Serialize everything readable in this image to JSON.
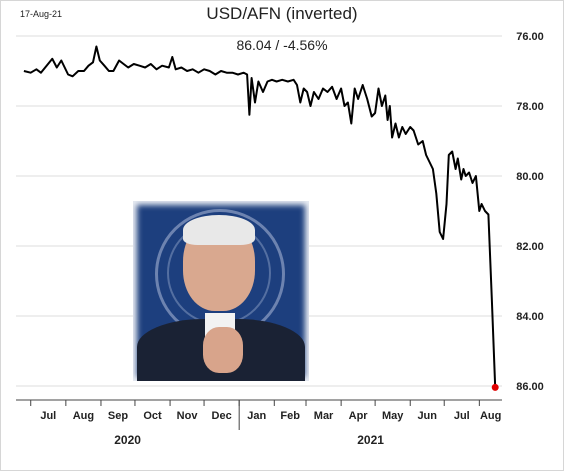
{
  "header": {
    "date_stamp": "17-Aug-21",
    "title": "USD/AFN (inverted)",
    "subtitle": "86.04  /  -4.56%"
  },
  "chart_data": {
    "type": "line",
    "title": "USD/AFN (inverted)",
    "subtitle": "86.04  /  -4.56%",
    "y_axis": {
      "inverted": true,
      "position": "right",
      "ylim": [
        76,
        86.3
      ],
      "ticks": [
        76,
        78,
        80,
        82,
        84,
        86
      ],
      "tick_labels": [
        "76.00",
        "78.00",
        "80.00",
        "82.00",
        "84.00",
        "86.00"
      ],
      "grid": true
    },
    "x_axis": {
      "month_labels": [
        "Jul",
        "Aug",
        "Sep",
        "Oct",
        "Nov",
        "Dec",
        "Jan",
        "Feb",
        "Mar",
        "Apr",
        "May",
        "Jun",
        "Jul",
        "Aug"
      ],
      "year_labels": [
        "2020",
        "2021"
      ]
    },
    "series": [
      {
        "color": "#000000",
        "points": [
          [
            "2020-06-25",
            77.0
          ],
          [
            "2020-07-01",
            77.05
          ],
          [
            "2020-07-06",
            76.95
          ],
          [
            "2020-07-10",
            77.05
          ],
          [
            "2020-07-15",
            76.85
          ],
          [
            "2020-07-20",
            76.65
          ],
          [
            "2020-07-24",
            76.9
          ],
          [
            "2020-07-28",
            76.7
          ],
          [
            "2020-08-03",
            77.1
          ],
          [
            "2020-08-07",
            77.15
          ],
          [
            "2020-08-12",
            77.0
          ],
          [
            "2020-08-17",
            77.0
          ],
          [
            "2020-08-21",
            76.85
          ],
          [
            "2020-08-25",
            76.75
          ],
          [
            "2020-08-28",
            76.3
          ],
          [
            "2020-08-31",
            76.7
          ],
          [
            "2020-09-04",
            76.85
          ],
          [
            "2020-09-08",
            77.0
          ],
          [
            "2020-09-12",
            77.0
          ],
          [
            "2020-09-17",
            76.7
          ],
          [
            "2020-09-21",
            76.8
          ],
          [
            "2020-09-25",
            76.9
          ],
          [
            "2020-09-30",
            76.8
          ],
          [
            "2020-10-05",
            76.85
          ],
          [
            "2020-10-10",
            76.9
          ],
          [
            "2020-10-15",
            76.8
          ],
          [
            "2020-10-20",
            76.95
          ],
          [
            "2020-10-25",
            76.85
          ],
          [
            "2020-10-31",
            76.9
          ],
          [
            "2020-11-03",
            76.6
          ],
          [
            "2020-11-06",
            76.95
          ],
          [
            "2020-11-11",
            76.9
          ],
          [
            "2020-11-16",
            77.0
          ],
          [
            "2020-11-21",
            76.95
          ],
          [
            "2020-11-26",
            77.05
          ],
          [
            "2020-12-01",
            76.95
          ],
          [
            "2020-12-06",
            77.0
          ],
          [
            "2020-12-11",
            77.1
          ],
          [
            "2020-12-16",
            77.0
          ],
          [
            "2020-12-21",
            77.05
          ],
          [
            "2020-12-26",
            77.05
          ],
          [
            "2020-12-31",
            77.1
          ],
          [
            "2021-01-05",
            77.05
          ],
          [
            "2021-01-08",
            77.1
          ],
          [
            "2021-01-10",
            78.25
          ],
          [
            "2021-01-12",
            77.2
          ],
          [
            "2021-01-15",
            77.9
          ],
          [
            "2021-01-18",
            77.3
          ],
          [
            "2021-01-22",
            77.6
          ],
          [
            "2021-01-26",
            77.3
          ],
          [
            "2021-01-30",
            77.25
          ],
          [
            "2021-02-03",
            77.3
          ],
          [
            "2021-02-08",
            77.25
          ],
          [
            "2021-02-13",
            77.3
          ],
          [
            "2021-02-18",
            77.25
          ],
          [
            "2021-02-21",
            77.4
          ],
          [
            "2021-02-24",
            77.9
          ],
          [
            "2021-02-27",
            77.5
          ],
          [
            "2021-03-02",
            77.6
          ],
          [
            "2021-03-05",
            78.0
          ],
          [
            "2021-03-08",
            77.6
          ],
          [
            "2021-03-12",
            77.8
          ],
          [
            "2021-03-16",
            77.5
          ],
          [
            "2021-03-20",
            77.6
          ],
          [
            "2021-03-24",
            77.45
          ],
          [
            "2021-03-28",
            77.8
          ],
          [
            "2021-04-01",
            77.5
          ],
          [
            "2021-04-04",
            78.0
          ],
          [
            "2021-04-07",
            77.9
          ],
          [
            "2021-04-10",
            78.5
          ],
          [
            "2021-04-13",
            77.5
          ],
          [
            "2021-04-16",
            77.8
          ],
          [
            "2021-04-20",
            77.4
          ],
          [
            "2021-04-24",
            77.8
          ],
          [
            "2021-04-28",
            78.3
          ],
          [
            "2021-05-01",
            78.2
          ],
          [
            "2021-05-04",
            77.5
          ],
          [
            "2021-05-07",
            78.0
          ],
          [
            "2021-05-10",
            77.7
          ],
          [
            "2021-05-12",
            78.4
          ],
          [
            "2021-05-14",
            78.0
          ],
          [
            "2021-05-16",
            78.9
          ],
          [
            "2021-05-19",
            78.5
          ],
          [
            "2021-05-22",
            78.9
          ],
          [
            "2021-05-25",
            78.6
          ],
          [
            "2021-05-28",
            78.8
          ],
          [
            "2021-06-01",
            78.6
          ],
          [
            "2021-06-04",
            78.7
          ],
          [
            "2021-06-08",
            79.1
          ],
          [
            "2021-06-12",
            79.0
          ],
          [
            "2021-06-15",
            79.4
          ],
          [
            "2021-06-18",
            79.6
          ],
          [
            "2021-06-21",
            79.8
          ],
          [
            "2021-06-24",
            80.5
          ],
          [
            "2021-06-27",
            81.6
          ],
          [
            "2021-06-30",
            81.8
          ],
          [
            "2021-07-03",
            80.8
          ],
          [
            "2021-07-05",
            79.4
          ],
          [
            "2021-07-08",
            79.3
          ],
          [
            "2021-07-11",
            79.8
          ],
          [
            "2021-07-13",
            79.5
          ],
          [
            "2021-07-16",
            80.1
          ],
          [
            "2021-07-18",
            79.8
          ],
          [
            "2021-07-20",
            80.0
          ],
          [
            "2021-07-23",
            79.9
          ],
          [
            "2021-07-26",
            80.2
          ],
          [
            "2021-07-29",
            80.0
          ],
          [
            "2021-08-01",
            81.0
          ],
          [
            "2021-08-03",
            80.8
          ],
          [
            "2021-08-06",
            81.0
          ],
          [
            "2021-08-09",
            81.1
          ],
          [
            "2021-08-12",
            83.5
          ],
          [
            "2021-08-15",
            86.04
          ]
        ]
      }
    ],
    "end_marker": {
      "date": "2021-08-15",
      "value": 86.04,
      "color": "#e00000"
    }
  }
}
